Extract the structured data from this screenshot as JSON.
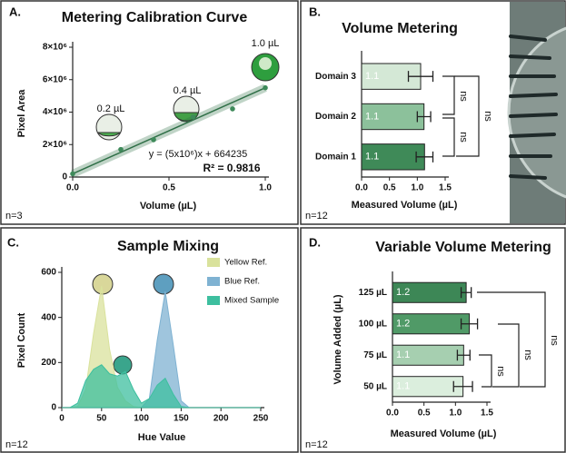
{
  "chart_data": [
    {
      "type": "scatter",
      "panel": "A.",
      "title": "Metering Calibration Curve",
      "x_label": "Volume (µL)",
      "y_label": "Pixel Area",
      "note": "n=3",
      "x": [
        0,
        0.25,
        0.42,
        0.625,
        0.83,
        1.0
      ],
      "values": [
        200000,
        1700000,
        2300000,
        3700000,
        4200000,
        5500000
      ],
      "color": "#3e8a5a",
      "fit": {
        "x": [
          0,
          1
        ],
        "values": [
          200000,
          5500000
        ],
        "color": "#2f6f47"
      },
      "annotations": [
        "0.2 µL",
        "0.4 µL",
        "1.0 µL",
        "y = (5x10⁶)x + 664235",
        "R² = 0.9816"
      ],
      "xlim": [
        0,
        1
      ],
      "xticks": [
        {
          "value": 0,
          "label": "0.0"
        },
        0.5,
        {
          "value": 1,
          "label": "1.0"
        }
      ],
      "ylim": [
        0,
        8000000
      ],
      "yticks": [
        0,
        {
          "value": 2000000,
          "label": "2×10⁶"
        },
        {
          "value": 4000000,
          "label": "4×10⁶"
        },
        {
          "value": 6000000,
          "label": "6×10⁶"
        },
        {
          "value": 8000000,
          "label": "8×10⁶"
        }
      ]
    },
    {
      "type": "bar",
      "orientation": "horizontal",
      "panel": "B.",
      "title": "Volume Metering",
      "x_label": "Measured Volume (µL)",
      "note": "n=12",
      "categories": [
        "Domain 3",
        "Domain 2",
        "Domain 1"
      ],
      "values": [
        1.06,
        1.12,
        1.13
      ],
      "errors": [
        0.22,
        0.12,
        0.15
      ],
      "value_labels": [
        "1.1",
        "1.1",
        "1.1"
      ],
      "colors": [
        "#d4e8d6",
        "#8cc19b",
        "#3f8a58"
      ],
      "annotations": [
        "ns",
        "ns",
        "ns"
      ],
      "xlim": [
        0,
        1.5
      ],
      "xticks": [
        {
          "value": 0,
          "label": "0.0"
        },
        0.5,
        {
          "value": 1,
          "label": "1.0"
        },
        1.5
      ]
    },
    {
      "type": "area",
      "panel": "C.",
      "title": "Sample Mixing",
      "x_label": "Hue Value",
      "y_label": "Pixel Count",
      "note": "n=12",
      "x": [
        0,
        10,
        20,
        30,
        40,
        50,
        60,
        70,
        80,
        90,
        100,
        110,
        120,
        130,
        140,
        150,
        160,
        170,
        180,
        190,
        200,
        210,
        220,
        230,
        240,
        250
      ],
      "series": [
        {
          "name": "Yellow Ref.",
          "color": "#d9e29c",
          "values": [
            0,
            0,
            5,
            80,
            330,
            540,
            260,
            90,
            30,
            5,
            0,
            0,
            0,
            0,
            0,
            0,
            0,
            0,
            0,
            0,
            0,
            0,
            0,
            0,
            0,
            0
          ]
        },
        {
          "name": "Blue Ref.",
          "color": "#7fb2d2",
          "values": [
            0,
            0,
            0,
            0,
            0,
            0,
            0,
            0,
            0,
            0,
            0,
            40,
            300,
            515,
            280,
            30,
            0,
            0,
            0,
            0,
            0,
            0,
            0,
            0,
            0,
            0
          ]
        },
        {
          "name": "Mixed Sample",
          "color": "#3dbf9f",
          "values": [
            0,
            0,
            20,
            120,
            170,
            190,
            150,
            140,
            160,
            80,
            20,
            40,
            100,
            130,
            60,
            5,
            0,
            0,
            0,
            0,
            0,
            0,
            0,
            0,
            0,
            0
          ]
        }
      ],
      "xlim": [
        0,
        250
      ],
      "xticks": [
        0,
        50,
        100,
        150,
        200,
        250
      ],
      "ylim": [
        0,
        600
      ],
      "yticks": [
        0,
        200,
        400,
        600
      ]
    },
    {
      "type": "bar",
      "orientation": "horizontal",
      "panel": "D.",
      "title": "Variable Volume Metering",
      "x_label": "Measured Volume (µL)",
      "y_label": "Volume Added (µL)",
      "note": "n=12",
      "categories": [
        "125 µL",
        "100 µL",
        "75 µL",
        "50 µL"
      ],
      "values": [
        1.17,
        1.22,
        1.13,
        1.12
      ],
      "errors": [
        0.08,
        0.13,
        0.1,
        0.15
      ],
      "value_labels": [
        "1.2",
        "1.2",
        "1.1",
        "1.1"
      ],
      "colors": [
        "#3d8756",
        "#509a67",
        "#a6cfb0",
        "#dbeedd"
      ],
      "annotations": [
        "ns",
        "ns",
        "ns"
      ],
      "xlim": [
        0,
        1.5
      ],
      "xticks": [
        {
          "value": 0,
          "label": "0.0"
        },
        0.5,
        {
          "value": 1,
          "label": "1.0"
        },
        1.5
      ]
    }
  ]
}
